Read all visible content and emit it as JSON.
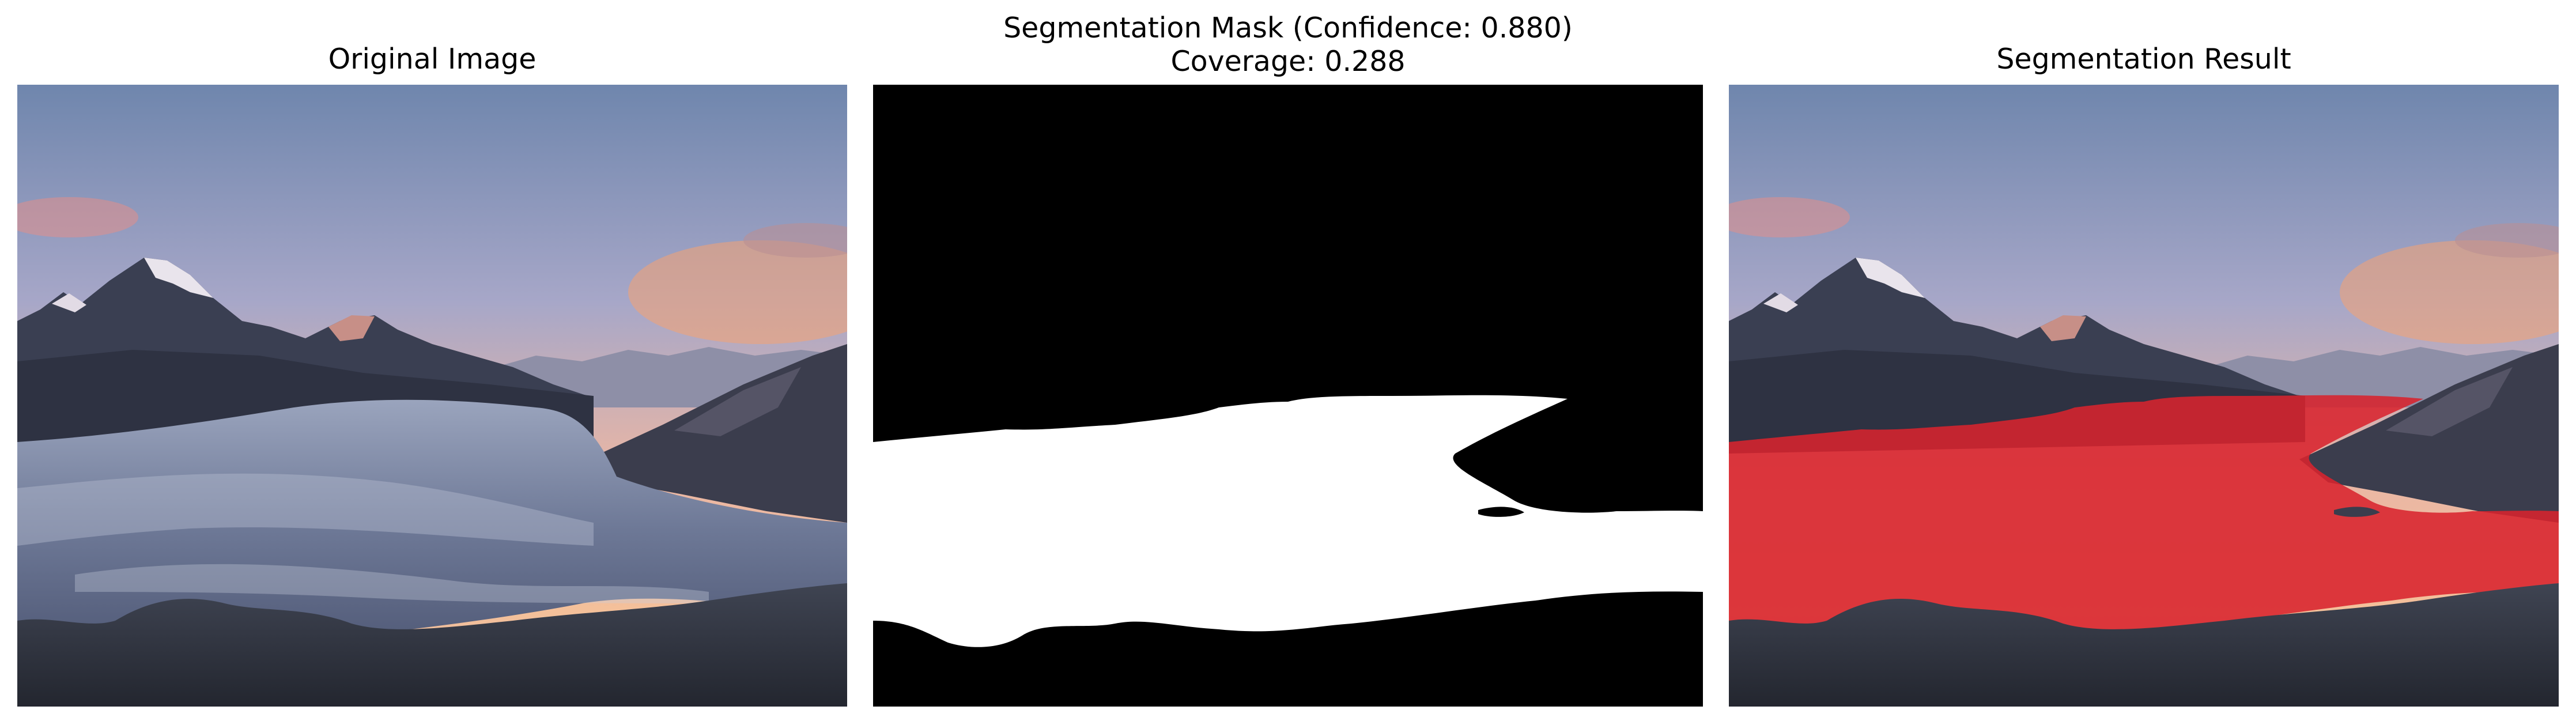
{
  "panels": [
    {
      "title": "Original Image"
    },
    {
      "title_line1": "Segmentation Mask (Confidence: 0.880)",
      "title_line2": "Coverage: 0.288"
    },
    {
      "title": "Segmentation Result"
    }
  ],
  "mask": {
    "confidence": 0.88,
    "coverage": 0.288,
    "overlay_color": "#e0202a",
    "background_color": "#000000",
    "foreground_color": "#ffffff"
  }
}
